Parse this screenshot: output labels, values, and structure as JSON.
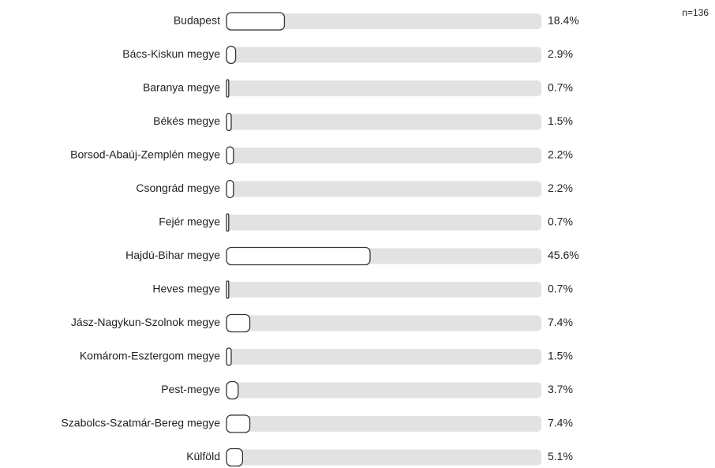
{
  "chart_data": {
    "type": "bar",
    "orientation": "horizontal",
    "annotation": "n=136",
    "categories": [
      "Budapest",
      "Bács-Kiskun megye",
      "Baranya megye",
      "Békés megye",
      "Borsod-Abaúj-Zemplén megye",
      "Csongrád megye",
      "Fejér megye",
      "Hajdú-Bihar megye",
      "Heves megye",
      "Jász-Nagykun-Szolnok megye",
      "Komárom-Esztergom megye",
      "Pest-megye",
      "Szabolcs-Szatmár-Bereg megye",
      "Külföld"
    ],
    "values": [
      18.4,
      2.9,
      0.7,
      1.5,
      2.2,
      2.2,
      0.7,
      45.6,
      0.7,
      7.4,
      1.5,
      3.7,
      7.4,
      5.1
    ],
    "value_labels": [
      "18.4%",
      "2.9%",
      "0.7%",
      "1.5%",
      "2.2%",
      "2.2%",
      "0.7%",
      "45.6%",
      "0.7%",
      "7.4%",
      "1.5%",
      "3.7%",
      "7.4%",
      "5.1%"
    ],
    "xlim": [
      0,
      100
    ],
    "color": "#ffffff",
    "track_color": "#e2e2e2",
    "stroke_color": "#333333"
  }
}
